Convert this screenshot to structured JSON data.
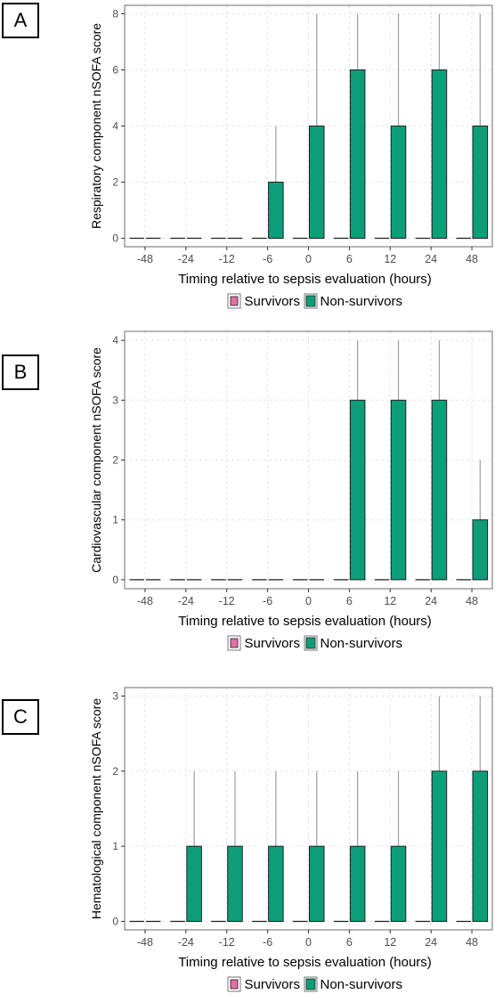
{
  "panels": [
    {
      "label": "A"
    },
    {
      "label": "B"
    },
    {
      "label": "C"
    }
  ],
  "colors": {
    "survivors": "#e26fa8",
    "non_survivors": "#0d9e79",
    "bar_border": "#1f1f1f",
    "whisker": "#9e9e9e",
    "grid": "#e6e6e6",
    "frame": "#6b6b6b"
  },
  "chart_data": [
    {
      "type": "bar",
      "categories": [
        "-48",
        "-24",
        "-12",
        "-6",
        "0",
        "6",
        "12",
        "24",
        "48"
      ],
      "xlabel": "Timing relative to sepsis evaluation (hours)",
      "ylabel": "Respiratory component nSOFA score",
      "ylim": [
        0,
        8
      ],
      "yticks": [
        0,
        2,
        4,
        6,
        8
      ],
      "grid": true,
      "legend_position": "bottom",
      "series": [
        {
          "name": "Survivors",
          "values": [
            0,
            0,
            0,
            0,
            0,
            0,
            0,
            0,
            0
          ]
        },
        {
          "name": "Non-survivors",
          "values": [
            0,
            0,
            0,
            2,
            4,
            6,
            4,
            6,
            4
          ],
          "upper": [
            0,
            0,
            0,
            4,
            8,
            8,
            8,
            8,
            8
          ]
        }
      ]
    },
    {
      "type": "bar",
      "categories": [
        "-48",
        "-24",
        "-12",
        "-6",
        "0",
        "6",
        "12",
        "24",
        "48"
      ],
      "xlabel": "Timing relative to sepsis evaluation (hours)",
      "ylabel": "Cardiovascular component nSOFA score",
      "ylim": [
        0,
        4
      ],
      "yticks": [
        0,
        1,
        2,
        3,
        4
      ],
      "grid": true,
      "legend_position": "bottom",
      "series": [
        {
          "name": "Survivors",
          "values": [
            0,
            0,
            0,
            0,
            0,
            0,
            0,
            0,
            0
          ]
        },
        {
          "name": "Non-survivors",
          "values": [
            0,
            0,
            0,
            0,
            0,
            3,
            3,
            3,
            1
          ],
          "upper": [
            0,
            0,
            0,
            0,
            0,
            4,
            4,
            4,
            2
          ]
        }
      ]
    },
    {
      "type": "bar",
      "categories": [
        "-48",
        "-24",
        "-12",
        "-6",
        "0",
        "6",
        "12",
        "24",
        "48"
      ],
      "xlabel": "Timing relative to sepsis evaluation (hours)",
      "ylabel": "Hematological component nSOFA score",
      "ylim": [
        0,
        3
      ],
      "yticks": [
        0,
        1,
        2,
        3
      ],
      "grid": true,
      "legend_position": "bottom",
      "series": [
        {
          "name": "Survivors",
          "values": [
            0,
            0,
            0,
            0,
            0,
            0,
            0,
            0,
            0
          ]
        },
        {
          "name": "Non-survivors",
          "values": [
            0,
            1,
            1,
            1,
            1,
            1,
            1,
            2,
            2
          ],
          "upper": [
            0,
            2,
            2,
            2,
            2,
            2,
            2,
            3,
            3
          ]
        }
      ]
    }
  ]
}
